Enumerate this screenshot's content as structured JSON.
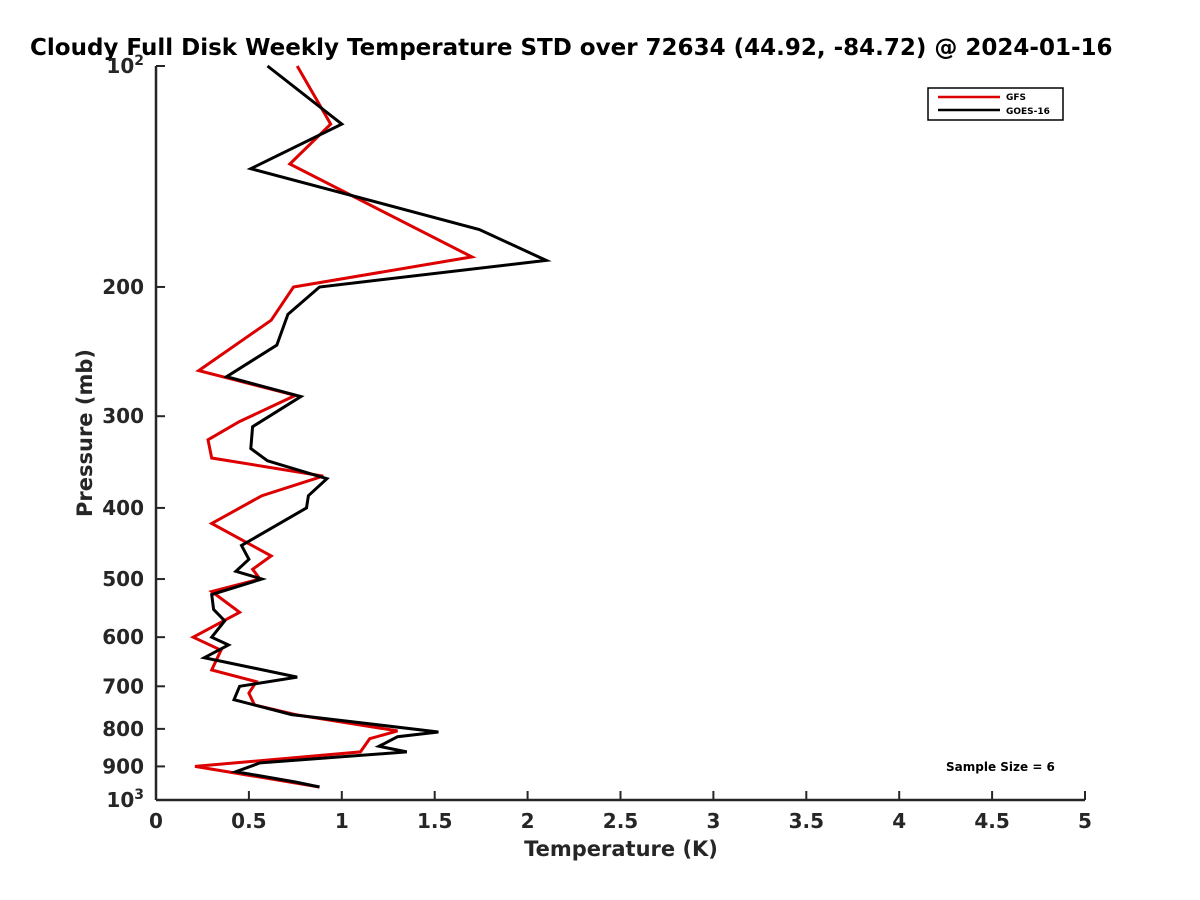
{
  "chart_data": {
    "type": "line",
    "title": "Cloudy Full Disk Weekly Temperature STD over 72634 (44.92, -84.72) @ 2024-01-16",
    "xlabel": "Temperature (K)",
    "ylabel": "Pressure (mb)",
    "xlim": [
      0,
      5
    ],
    "ylim": [
      100,
      1000
    ],
    "y_scale": "log",
    "y_reversed": true,
    "grid": false,
    "legend_position": "top-right",
    "x_ticks": [
      "0",
      "0.5",
      "1",
      "1.5",
      "2",
      "2.5",
      "3",
      "3.5",
      "4",
      "4.5",
      "5"
    ],
    "y_ticks": [
      {
        "value": 100,
        "base": "10",
        "exp": "2",
        "label": ""
      },
      {
        "value": 200,
        "base": "",
        "exp": "",
        "label": "200"
      },
      {
        "value": 300,
        "base": "",
        "exp": "",
        "label": "300"
      },
      {
        "value": 400,
        "base": "",
        "exp": "",
        "label": "400"
      },
      {
        "value": 500,
        "base": "",
        "exp": "",
        "label": "500"
      },
      {
        "value": 600,
        "base": "",
        "exp": "",
        "label": "600"
      },
      {
        "value": 700,
        "base": "",
        "exp": "",
        "label": "700"
      },
      {
        "value": 800,
        "base": "",
        "exp": "",
        "label": "800"
      },
      {
        "value": 900,
        "base": "",
        "exp": "",
        "label": "900"
      },
      {
        "value": 1000,
        "base": "10",
        "exp": "3",
        "label": ""
      }
    ],
    "annotation": "Sample Size = 6",
    "series": [
      {
        "name": "GFS",
        "color": "#dd0000",
        "points": [
          [
            0.76,
            100
          ],
          [
            0.94,
            120
          ],
          [
            0.72,
            136
          ],
          [
            1.7,
            182
          ],
          [
            0.74,
            200
          ],
          [
            0.62,
            222
          ],
          [
            0.23,
            260
          ],
          [
            0.75,
            281
          ],
          [
            0.45,
            305
          ],
          [
            0.28,
            323
          ],
          [
            0.3,
            342
          ],
          [
            0.9,
            362
          ],
          [
            0.57,
            385
          ],
          [
            0.3,
            420
          ],
          [
            0.62,
            465
          ],
          [
            0.52,
            485
          ],
          [
            0.56,
            500
          ],
          [
            0.3,
            520
          ],
          [
            0.45,
            555
          ],
          [
            0.2,
            600
          ],
          [
            0.35,
            625
          ],
          [
            0.3,
            665
          ],
          [
            0.54,
            690
          ],
          [
            0.5,
            715
          ],
          [
            0.53,
            742
          ],
          [
            0.75,
            765
          ],
          [
            1.3,
            805
          ],
          [
            1.15,
            825
          ],
          [
            1.1,
            860
          ],
          [
            0.21,
            900
          ],
          [
            0.88,
            960
          ]
        ]
      },
      {
        "name": "GOES-16",
        "color": "#000000",
        "points": [
          [
            0.6,
            100
          ],
          [
            1.0,
            120
          ],
          [
            0.51,
            138
          ],
          [
            1.74,
            167
          ],
          [
            2.1,
            184
          ],
          [
            0.88,
            200
          ],
          [
            0.71,
            218
          ],
          [
            0.65,
            240
          ],
          [
            0.38,
            265
          ],
          [
            0.78,
            282
          ],
          [
            0.52,
            310
          ],
          [
            0.51,
            332
          ],
          [
            0.6,
            345
          ],
          [
            0.92,
            365
          ],
          [
            0.82,
            385
          ],
          [
            0.81,
            400
          ],
          [
            0.46,
            450
          ],
          [
            0.5,
            470
          ],
          [
            0.43,
            488
          ],
          [
            0.57,
            500
          ],
          [
            0.3,
            525
          ],
          [
            0.31,
            550
          ],
          [
            0.37,
            570
          ],
          [
            0.3,
            600
          ],
          [
            0.39,
            615
          ],
          [
            0.26,
            640
          ],
          [
            0.76,
            680
          ],
          [
            0.45,
            700
          ],
          [
            0.42,
            730
          ],
          [
            0.73,
            765
          ],
          [
            1.52,
            808
          ],
          [
            1.3,
            820
          ],
          [
            1.2,
            845
          ],
          [
            1.35,
            860
          ],
          [
            0.56,
            890
          ],
          [
            0.43,
            915
          ],
          [
            0.75,
            945
          ],
          [
            0.88,
            960
          ]
        ]
      }
    ]
  }
}
